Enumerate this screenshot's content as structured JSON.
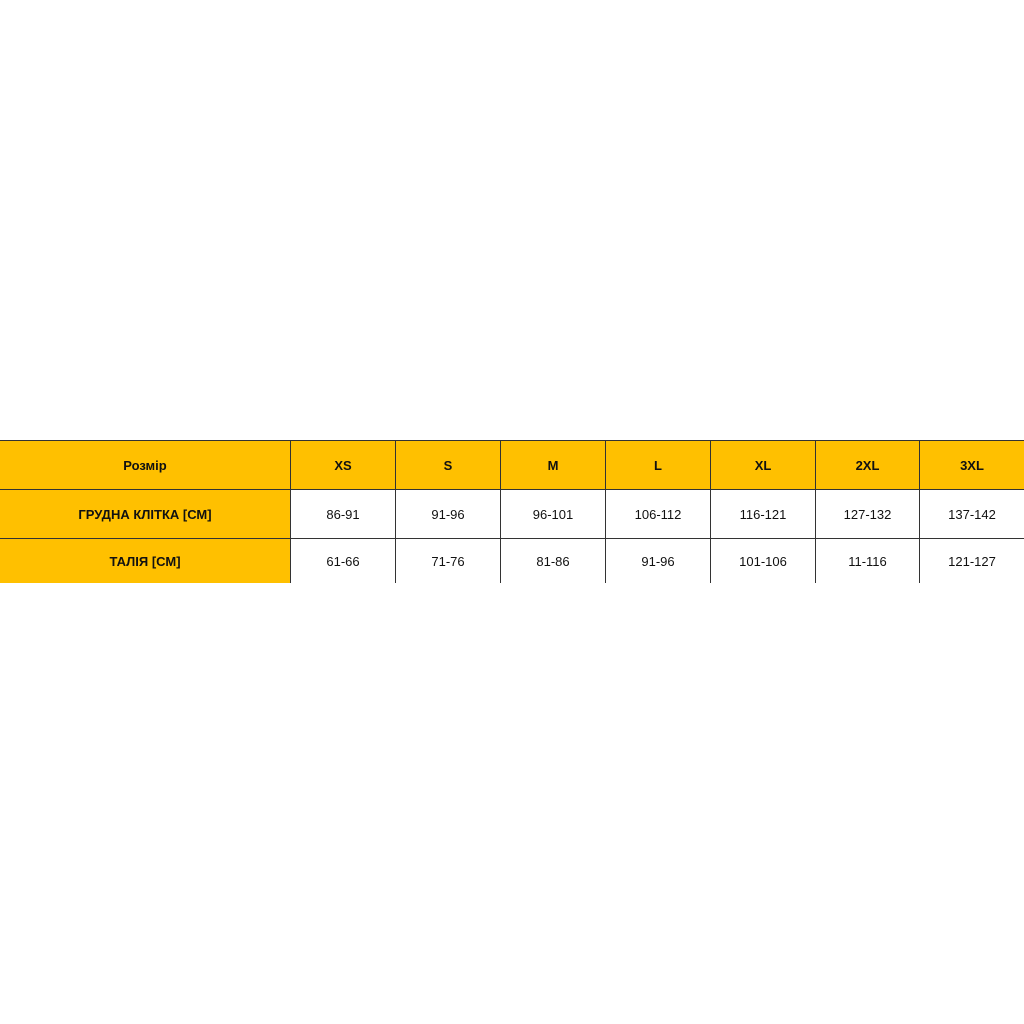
{
  "table": {
    "header": [
      "Розмір",
      "XS",
      "S",
      "M",
      "L",
      "XL",
      "2XL",
      "3XL"
    ],
    "rows": [
      [
        "ГРУДНА КЛІТКА [СМ]",
        "86-91",
        "91-96",
        "96-101",
        "106-112",
        "116-121",
        "127-132",
        "137-142"
      ],
      [
        "ТАЛІЯ [СМ]",
        "61-66",
        "71-76",
        "81-86",
        "91-96",
        "101-106",
        "11-116",
        "121-127"
      ]
    ]
  }
}
